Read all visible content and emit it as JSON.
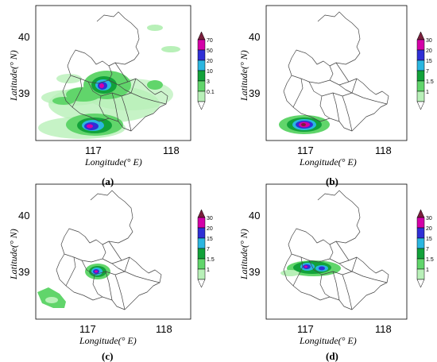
{
  "figure": {
    "panels": [
      {
        "id": "a",
        "label": "(a)",
        "xlabel": "Longitude(° E)",
        "ylabel": "Latitude(° N)",
        "xticks": [
          "117",
          "118"
        ],
        "yticks": [
          "40",
          "39"
        ],
        "legend": [
          "70",
          "50",
          "20",
          "10",
          "3",
          "0.1"
        ],
        "legend_colors": [
          "#7a1f3d",
          "#d400a8",
          "#2f2fd6",
          "#2ab6e0",
          "#12a23a",
          "#61d56b",
          "#b8f0b8",
          "#ffffff"
        ]
      },
      {
        "id": "b",
        "label": "(b)",
        "xlabel": "Longitude(° E)",
        "ylabel": "Latitude(° N)",
        "xticks": [
          "117",
          "118"
        ],
        "yticks": [
          "40",
          "39"
        ],
        "legend": [
          "30",
          "20",
          "15",
          "7",
          "1.5",
          "1"
        ],
        "legend_colors": [
          "#7a1f3d",
          "#d400a8",
          "#2f2fd6",
          "#2ab6e0",
          "#12a23a",
          "#61d56b",
          "#b8f0b8",
          "#ffffff"
        ]
      },
      {
        "id": "c",
        "label": "(c)",
        "xlabel": "Longitude(° E)",
        "ylabel": "Latitude(° N)",
        "xticks": [
          "117",
          "118"
        ],
        "yticks": [
          "40",
          "39"
        ],
        "legend": [
          "30",
          "20",
          "15",
          "7",
          "1.5",
          "1"
        ],
        "legend_colors": [
          "#7a1f3d",
          "#d400a8",
          "#2f2fd6",
          "#2ab6e0",
          "#12a23a",
          "#61d56b",
          "#b8f0b8",
          "#ffffff"
        ]
      },
      {
        "id": "d",
        "label": "(d)",
        "xlabel": "Longitude(° E)",
        "ylabel": "Latitude(° N)",
        "xticks": [
          "117",
          "118"
        ],
        "yticks": [
          "40",
          "39"
        ],
        "legend": [
          "30",
          "20",
          "15",
          "7",
          "1.5",
          "1"
        ],
        "legend_colors": [
          "#7a1f3d",
          "#d400a8",
          "#2f2fd6",
          "#2ab6e0",
          "#12a23a",
          "#61d56b",
          "#b8f0b8",
          "#ffffff"
        ]
      }
    ]
  }
}
